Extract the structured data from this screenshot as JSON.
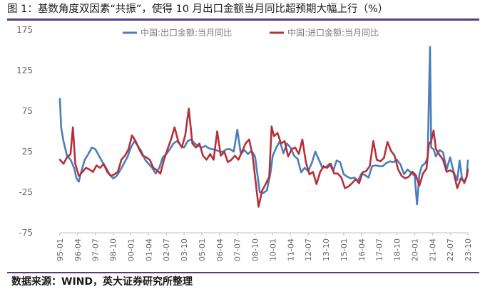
{
  "figure": {
    "title": "图 1：基数角度双因素“共振”，使得 10 月出口金额当月同比超预期大幅上行（%）",
    "source": "数据来源：WIND，英大证券研究所整理"
  },
  "colors": {
    "export": "#4a7ebb",
    "import": "#b5303a",
    "rule": "#5b3a78",
    "axis": "#bfbfbf",
    "tick_text": "#666666"
  },
  "chart_data": {
    "type": "line",
    "title": "",
    "xlabel": "",
    "ylabel": "",
    "ylim": [
      -75,
      175
    ],
    "yticks": [
      -75,
      -25,
      25,
      75,
      125,
      175
    ],
    "grid": false,
    "legend": "top-center",
    "x_tick_labels": [
      "95-01",
      "96-04",
      "97-07",
      "98-10",
      "00-01",
      "01-04",
      "02-07",
      "03-10",
      "05-01",
      "06-04",
      "07-07",
      "08-10",
      "10-01",
      "11-04",
      "12-07",
      "13-10",
      "15-01",
      "16-04",
      "17-07",
      "18-10",
      "20-01",
      "21-04",
      "22-07",
      "23-10"
    ],
    "x_start": "1995-01",
    "x_end": "2023-10",
    "series": [
      {
        "name": "中国:出口金额:当月同比",
        "color": "#4a7ebb",
        "points": [
          [
            "1995-01",
            90
          ],
          [
            "1995-02",
            55
          ],
          [
            "1995-04",
            38
          ],
          [
            "1995-07",
            20
          ],
          [
            "1995-10",
            15
          ],
          [
            "1996-01",
            5
          ],
          [
            "1996-03",
            -8
          ],
          [
            "1996-05",
            -12
          ],
          [
            "1996-07",
            0
          ],
          [
            "1996-10",
            15
          ],
          [
            "1997-01",
            22
          ],
          [
            "1997-04",
            30
          ],
          [
            "1997-07",
            28
          ],
          [
            "1997-10",
            20
          ],
          [
            "1998-01",
            12
          ],
          [
            "1998-04",
            5
          ],
          [
            "1998-07",
            -3
          ],
          [
            "1998-10",
            -8
          ],
          [
            "1999-01",
            -5
          ],
          [
            "1999-04",
            2
          ],
          [
            "1999-07",
            10
          ],
          [
            "1999-10",
            18
          ],
          [
            "2000-01",
            30
          ],
          [
            "2000-04",
            38
          ],
          [
            "2000-07",
            32
          ],
          [
            "2000-10",
            25
          ],
          [
            "2001-01",
            15
          ],
          [
            "2001-04",
            10
          ],
          [
            "2001-07",
            5
          ],
          [
            "2001-10",
            -2
          ],
          [
            "2002-01",
            5
          ],
          [
            "2002-04",
            18
          ],
          [
            "2002-07",
            22
          ],
          [
            "2002-10",
            28
          ],
          [
            "2003-01",
            35
          ],
          [
            "2003-04",
            38
          ],
          [
            "2003-07",
            33
          ],
          [
            "2003-10",
            30
          ],
          [
            "2004-01",
            38
          ],
          [
            "2004-04",
            40
          ],
          [
            "2004-07",
            35
          ],
          [
            "2004-10",
            32
          ],
          [
            "2005-01",
            30
          ],
          [
            "2005-04",
            32
          ],
          [
            "2005-07",
            29
          ],
          [
            "2005-10",
            28
          ],
          [
            "2006-01",
            27
          ],
          [
            "2006-04",
            25
          ],
          [
            "2006-07",
            25
          ],
          [
            "2006-10",
            28
          ],
          [
            "2007-01",
            28
          ],
          [
            "2007-04",
            25
          ],
          [
            "2007-07",
            52
          ],
          [
            "2007-10",
            22
          ],
          [
            "2008-01",
            27
          ],
          [
            "2008-04",
            22
          ],
          [
            "2008-07",
            26
          ],
          [
            "2008-10",
            19
          ],
          [
            "2008-12",
            -3
          ],
          [
            "2009-02",
            -25
          ],
          [
            "2009-05",
            -26
          ],
          [
            "2009-08",
            -23
          ],
          [
            "2009-11",
            -2
          ],
          [
            "2010-01",
            20
          ],
          [
            "2010-04",
            30
          ],
          [
            "2010-07",
            38
          ],
          [
            "2010-10",
            23
          ],
          [
            "2011-01",
            35
          ],
          [
            "2011-04",
            30
          ],
          [
            "2011-07",
            20
          ],
          [
            "2011-10",
            16
          ],
          [
            "2012-01",
            -0.5
          ],
          [
            "2012-04",
            5
          ],
          [
            "2012-07",
            1
          ],
          [
            "2012-10",
            11
          ],
          [
            "2013-01",
            25
          ],
          [
            "2013-04",
            15
          ],
          [
            "2013-07",
            5
          ],
          [
            "2013-10",
            6
          ],
          [
            "2014-01",
            10
          ],
          [
            "2014-04",
            1
          ],
          [
            "2014-07",
            14
          ],
          [
            "2014-10",
            12
          ],
          [
            "2015-01",
            -3
          ],
          [
            "2015-04",
            -6
          ],
          [
            "2015-07",
            -8
          ],
          [
            "2015-10",
            -7
          ],
          [
            "2016-01",
            -11
          ],
          [
            "2016-04",
            -2
          ],
          [
            "2016-07",
            -4
          ],
          [
            "2016-10",
            -7
          ],
          [
            "2017-01",
            7
          ],
          [
            "2017-04",
            8
          ],
          [
            "2017-07",
            7
          ],
          [
            "2017-10",
            7
          ],
          [
            "2018-01",
            11
          ],
          [
            "2018-04",
            13
          ],
          [
            "2018-07",
            12
          ],
          [
            "2018-10",
            15
          ],
          [
            "2019-01",
            9
          ],
          [
            "2019-04",
            -3
          ],
          [
            "2019-07",
            3
          ],
          [
            "2019-10",
            -1
          ],
          [
            "2020-01",
            -5
          ],
          [
            "2020-03",
            -40
          ],
          [
            "2020-05",
            -3
          ],
          [
            "2020-07",
            7
          ],
          [
            "2020-10",
            11
          ],
          [
            "2020-12",
            18
          ],
          [
            "2021-02",
            154
          ],
          [
            "2021-03",
            30
          ],
          [
            "2021-05",
            28
          ],
          [
            "2021-07",
            19
          ],
          [
            "2021-10",
            27
          ],
          [
            "2022-01",
            24
          ],
          [
            "2022-04",
            3
          ],
          [
            "2022-07",
            18
          ],
          [
            "2022-10",
            -0.3
          ],
          [
            "2023-01",
            -10
          ],
          [
            "2023-03",
            14
          ],
          [
            "2023-05",
            -7
          ],
          [
            "2023-07",
            -14
          ],
          [
            "2023-09",
            -6
          ],
          [
            "2023-10",
            14
          ]
        ]
      },
      {
        "name": "中国:进口金额:当月同比",
        "color": "#b5303a",
        "points": [
          [
            "1995-01",
            15
          ],
          [
            "1995-04",
            10
          ],
          [
            "1995-07",
            18
          ],
          [
            "1995-10",
            22
          ],
          [
            "1995-12",
            55
          ],
          [
            "1996-02",
            10
          ],
          [
            "1996-05",
            -5
          ],
          [
            "1996-08",
            0
          ],
          [
            "1996-11",
            5
          ],
          [
            "1997-02",
            3
          ],
          [
            "1997-05",
            0
          ],
          [
            "1997-08",
            8
          ],
          [
            "1997-11",
            5
          ],
          [
            "1998-02",
            10
          ],
          [
            "1998-05",
            0
          ],
          [
            "1998-08",
            -5
          ],
          [
            "1998-11",
            -3
          ],
          [
            "1999-02",
            0
          ],
          [
            "1999-05",
            15
          ],
          [
            "1999-08",
            20
          ],
          [
            "1999-11",
            28
          ],
          [
            "2000-02",
            45
          ],
          [
            "2000-05",
            38
          ],
          [
            "2000-08",
            28
          ],
          [
            "2000-11",
            20
          ],
          [
            "2001-02",
            18
          ],
          [
            "2001-05",
            15
          ],
          [
            "2001-08",
            5
          ],
          [
            "2001-11",
            2
          ],
          [
            "2002-02",
            -2
          ],
          [
            "2002-05",
            15
          ],
          [
            "2002-08",
            28
          ],
          [
            "2002-11",
            40
          ],
          [
            "2003-02",
            55
          ],
          [
            "2003-05",
            38
          ],
          [
            "2003-08",
            30
          ],
          [
            "2003-11",
            45
          ],
          [
            "2004-02",
            78
          ],
          [
            "2004-05",
            35
          ],
          [
            "2004-08",
            30
          ],
          [
            "2004-11",
            35
          ],
          [
            "2005-02",
            20
          ],
          [
            "2005-05",
            15
          ],
          [
            "2005-08",
            22
          ],
          [
            "2005-11",
            15
          ],
          [
            "2006-02",
            50
          ],
          [
            "2006-05",
            20
          ],
          [
            "2006-08",
            25
          ],
          [
            "2006-11",
            12
          ],
          [
            "2007-02",
            15
          ],
          [
            "2007-05",
            20
          ],
          [
            "2007-08",
            15
          ],
          [
            "2007-11",
            25
          ],
          [
            "2008-02",
            35
          ],
          [
            "2008-05",
            40
          ],
          [
            "2008-08",
            20
          ],
          [
            "2008-11",
            -18
          ],
          [
            "2009-01",
            -43
          ],
          [
            "2009-04",
            -23
          ],
          [
            "2009-07",
            -15
          ],
          [
            "2009-10",
            -6
          ],
          [
            "2009-12",
            56
          ],
          [
            "2010-02",
            44
          ],
          [
            "2010-05",
            48
          ],
          [
            "2010-08",
            35
          ],
          [
            "2010-11",
            38
          ],
          [
            "2011-02",
            19
          ],
          [
            "2011-05",
            28
          ],
          [
            "2011-08",
            30
          ],
          [
            "2011-11",
            22
          ],
          [
            "2012-02",
            40
          ],
          [
            "2012-05",
            12
          ],
          [
            "2012-08",
            -3
          ],
          [
            "2012-11",
            0
          ],
          [
            "2013-02",
            -15
          ],
          [
            "2013-05",
            -0.3
          ],
          [
            "2013-08",
            7
          ],
          [
            "2013-11",
            5
          ],
          [
            "2014-02",
            10
          ],
          [
            "2014-05",
            -2
          ],
          [
            "2014-08",
            -2
          ],
          [
            "2014-11",
            -7
          ],
          [
            "2015-02",
            -20
          ],
          [
            "2015-05",
            -18
          ],
          [
            "2015-08",
            -14
          ],
          [
            "2015-11",
            -9
          ],
          [
            "2016-02",
            -14
          ],
          [
            "2016-05",
            -0.4
          ],
          [
            "2016-08",
            1
          ],
          [
            "2016-11",
            7
          ],
          [
            "2017-02",
            38
          ],
          [
            "2017-05",
            15
          ],
          [
            "2017-08",
            13
          ],
          [
            "2017-11",
            17
          ],
          [
            "2018-02",
            37
          ],
          [
            "2018-05",
            26
          ],
          [
            "2018-08",
            20
          ],
          [
            "2018-11",
            3
          ],
          [
            "2019-02",
            -5
          ],
          [
            "2019-05",
            -8
          ],
          [
            "2019-08",
            -6
          ],
          [
            "2019-11",
            0.3
          ],
          [
            "2020-02",
            -4
          ],
          [
            "2020-05",
            -17
          ],
          [
            "2020-08",
            -2
          ],
          [
            "2020-11",
            4
          ],
          [
            "2021-01",
            34
          ],
          [
            "2021-03",
            38
          ],
          [
            "2021-05",
            51
          ],
          [
            "2021-07",
            28
          ],
          [
            "2021-10",
            21
          ],
          [
            "2022-01",
            15
          ],
          [
            "2022-04",
            0
          ],
          [
            "2022-07",
            2
          ],
          [
            "2022-10",
            -1
          ],
          [
            "2023-01",
            -20
          ],
          [
            "2023-04",
            -8
          ],
          [
            "2023-07",
            -12
          ],
          [
            "2023-09",
            -6
          ],
          [
            "2023-10",
            3
          ]
        ]
      }
    ]
  }
}
